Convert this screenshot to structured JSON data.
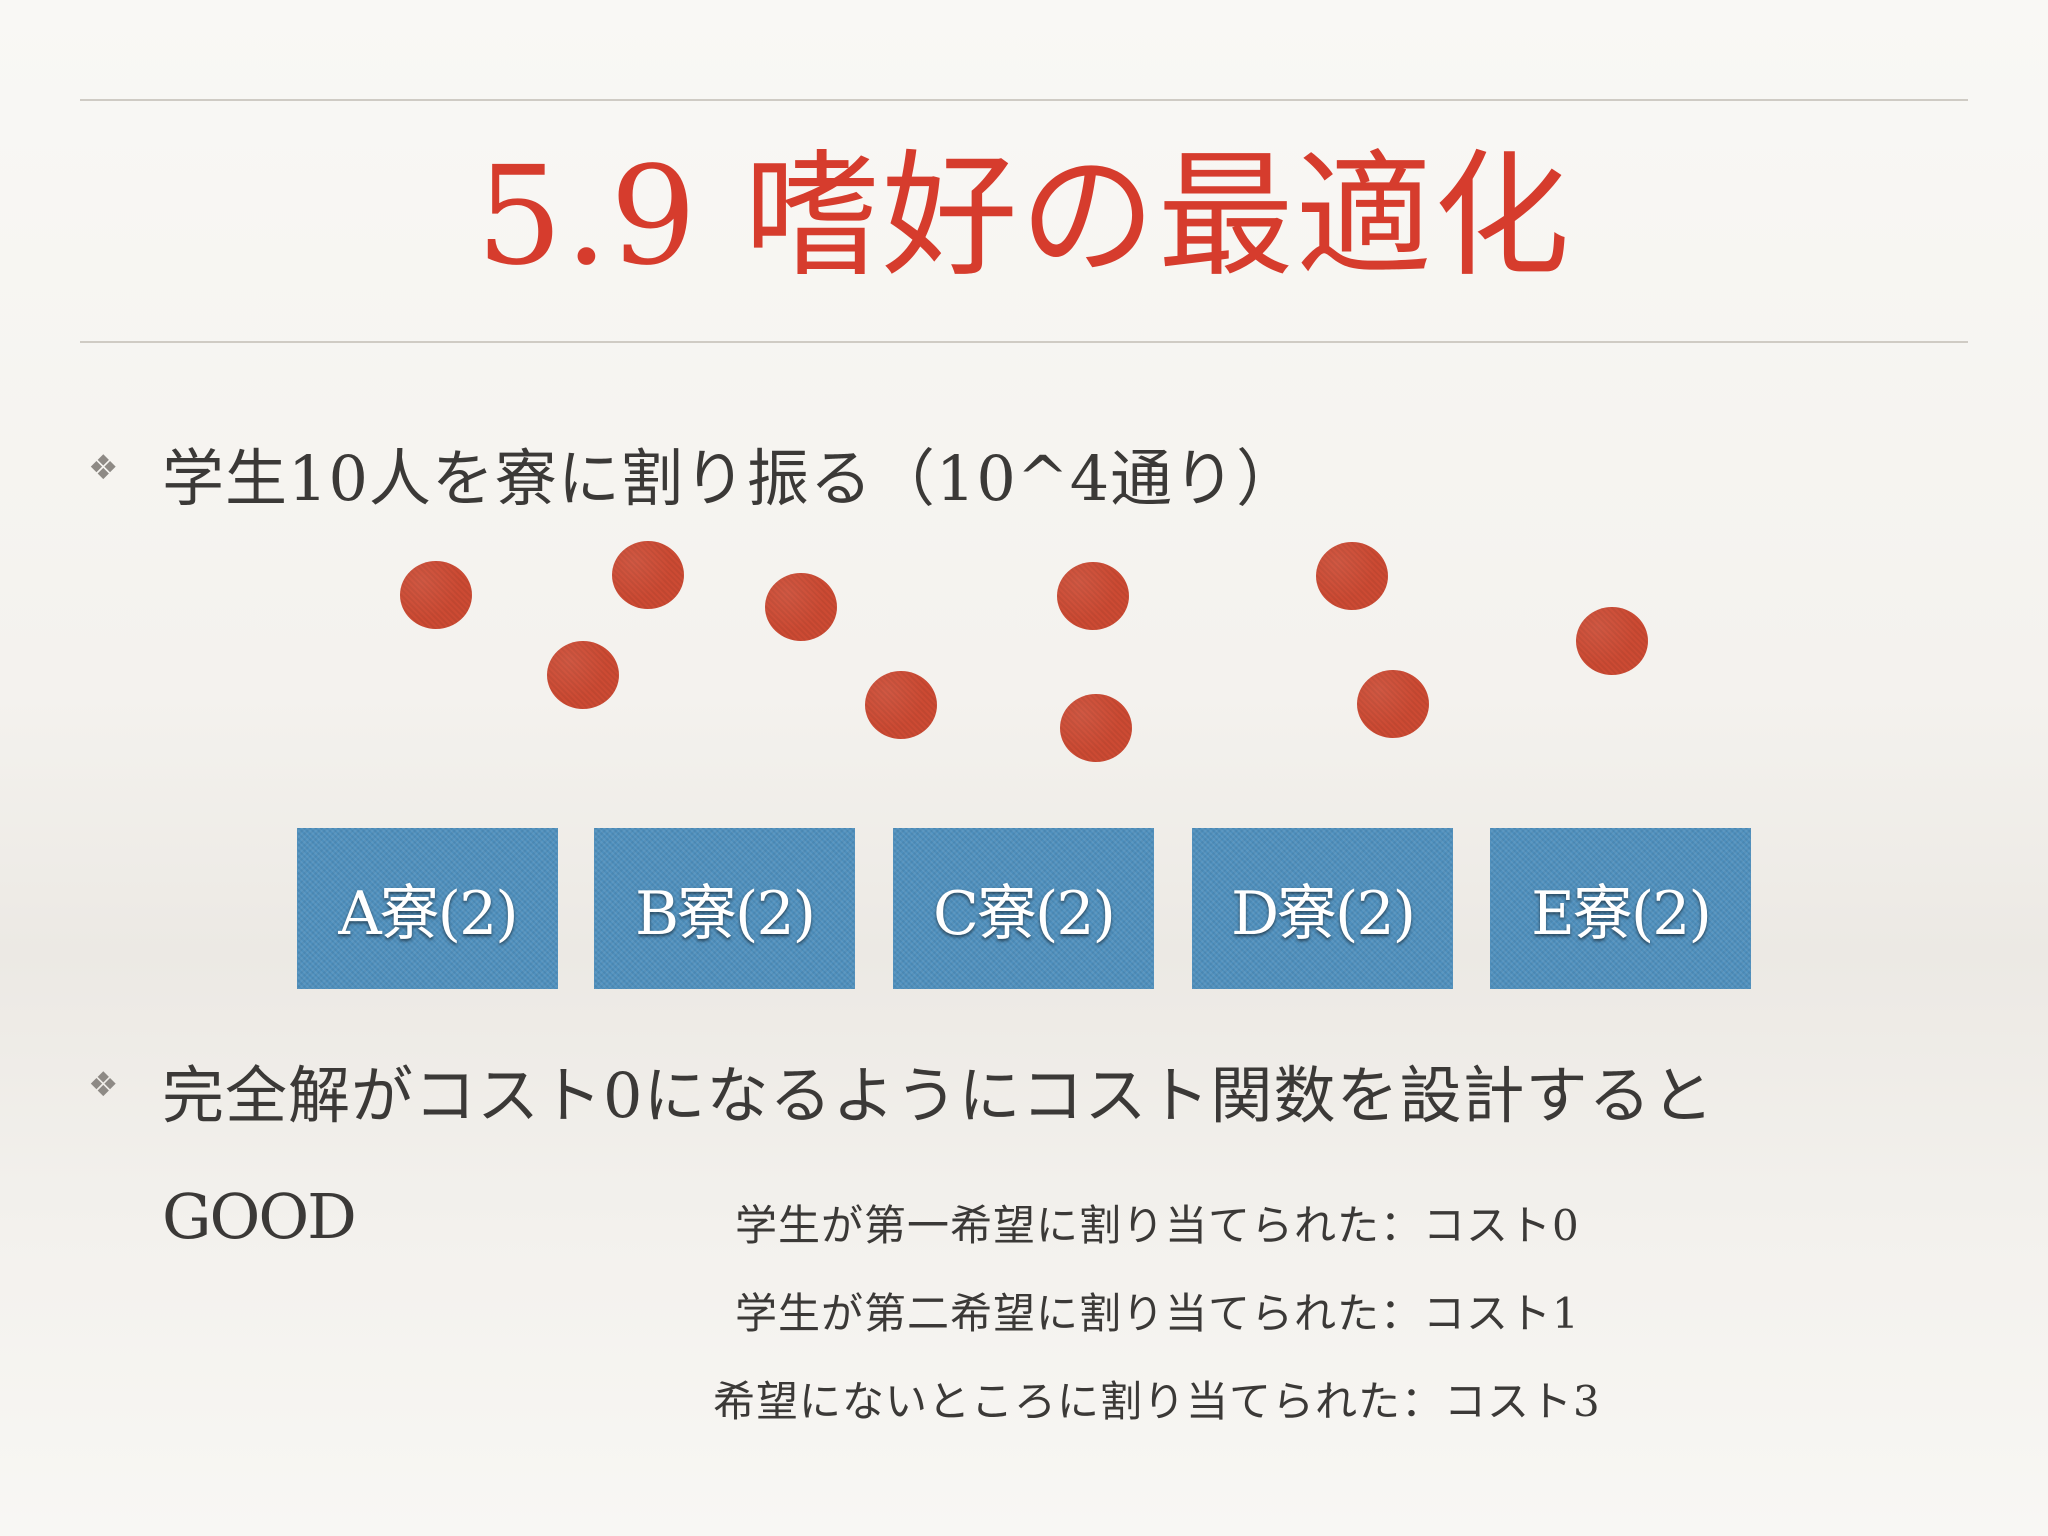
{
  "slide": {
    "title": "5.9 嗜好の最適化",
    "bullets": [
      {
        "icon": "diamond-flower-bullet-icon",
        "text": "学生10人を寮に割り振る（10^4通り）"
      },
      {
        "icon": "diamond-flower-bullet-icon",
        "text": "完全解がコスト0になるようにコスト関数を設計すると"
      }
    ],
    "good_label": "GOOD",
    "students": {
      "count": 10,
      "color": "#cc4a33"
    },
    "dorms": {
      "color": "#4e8fbd",
      "items": [
        "A寮(2)",
        "B寮(2)",
        "C寮(2)",
        "D寮(2)",
        "E寮(2)"
      ]
    },
    "cost_rules": [
      "学生が第一希望に割り当てられた：コスト0",
      "学生が第二希望に割り当てられた：コスト1",
      "希望にないところに割り当てられた：コスト3"
    ],
    "colors": {
      "title": "#d63c2d",
      "text": "#3b3937"
    }
  }
}
